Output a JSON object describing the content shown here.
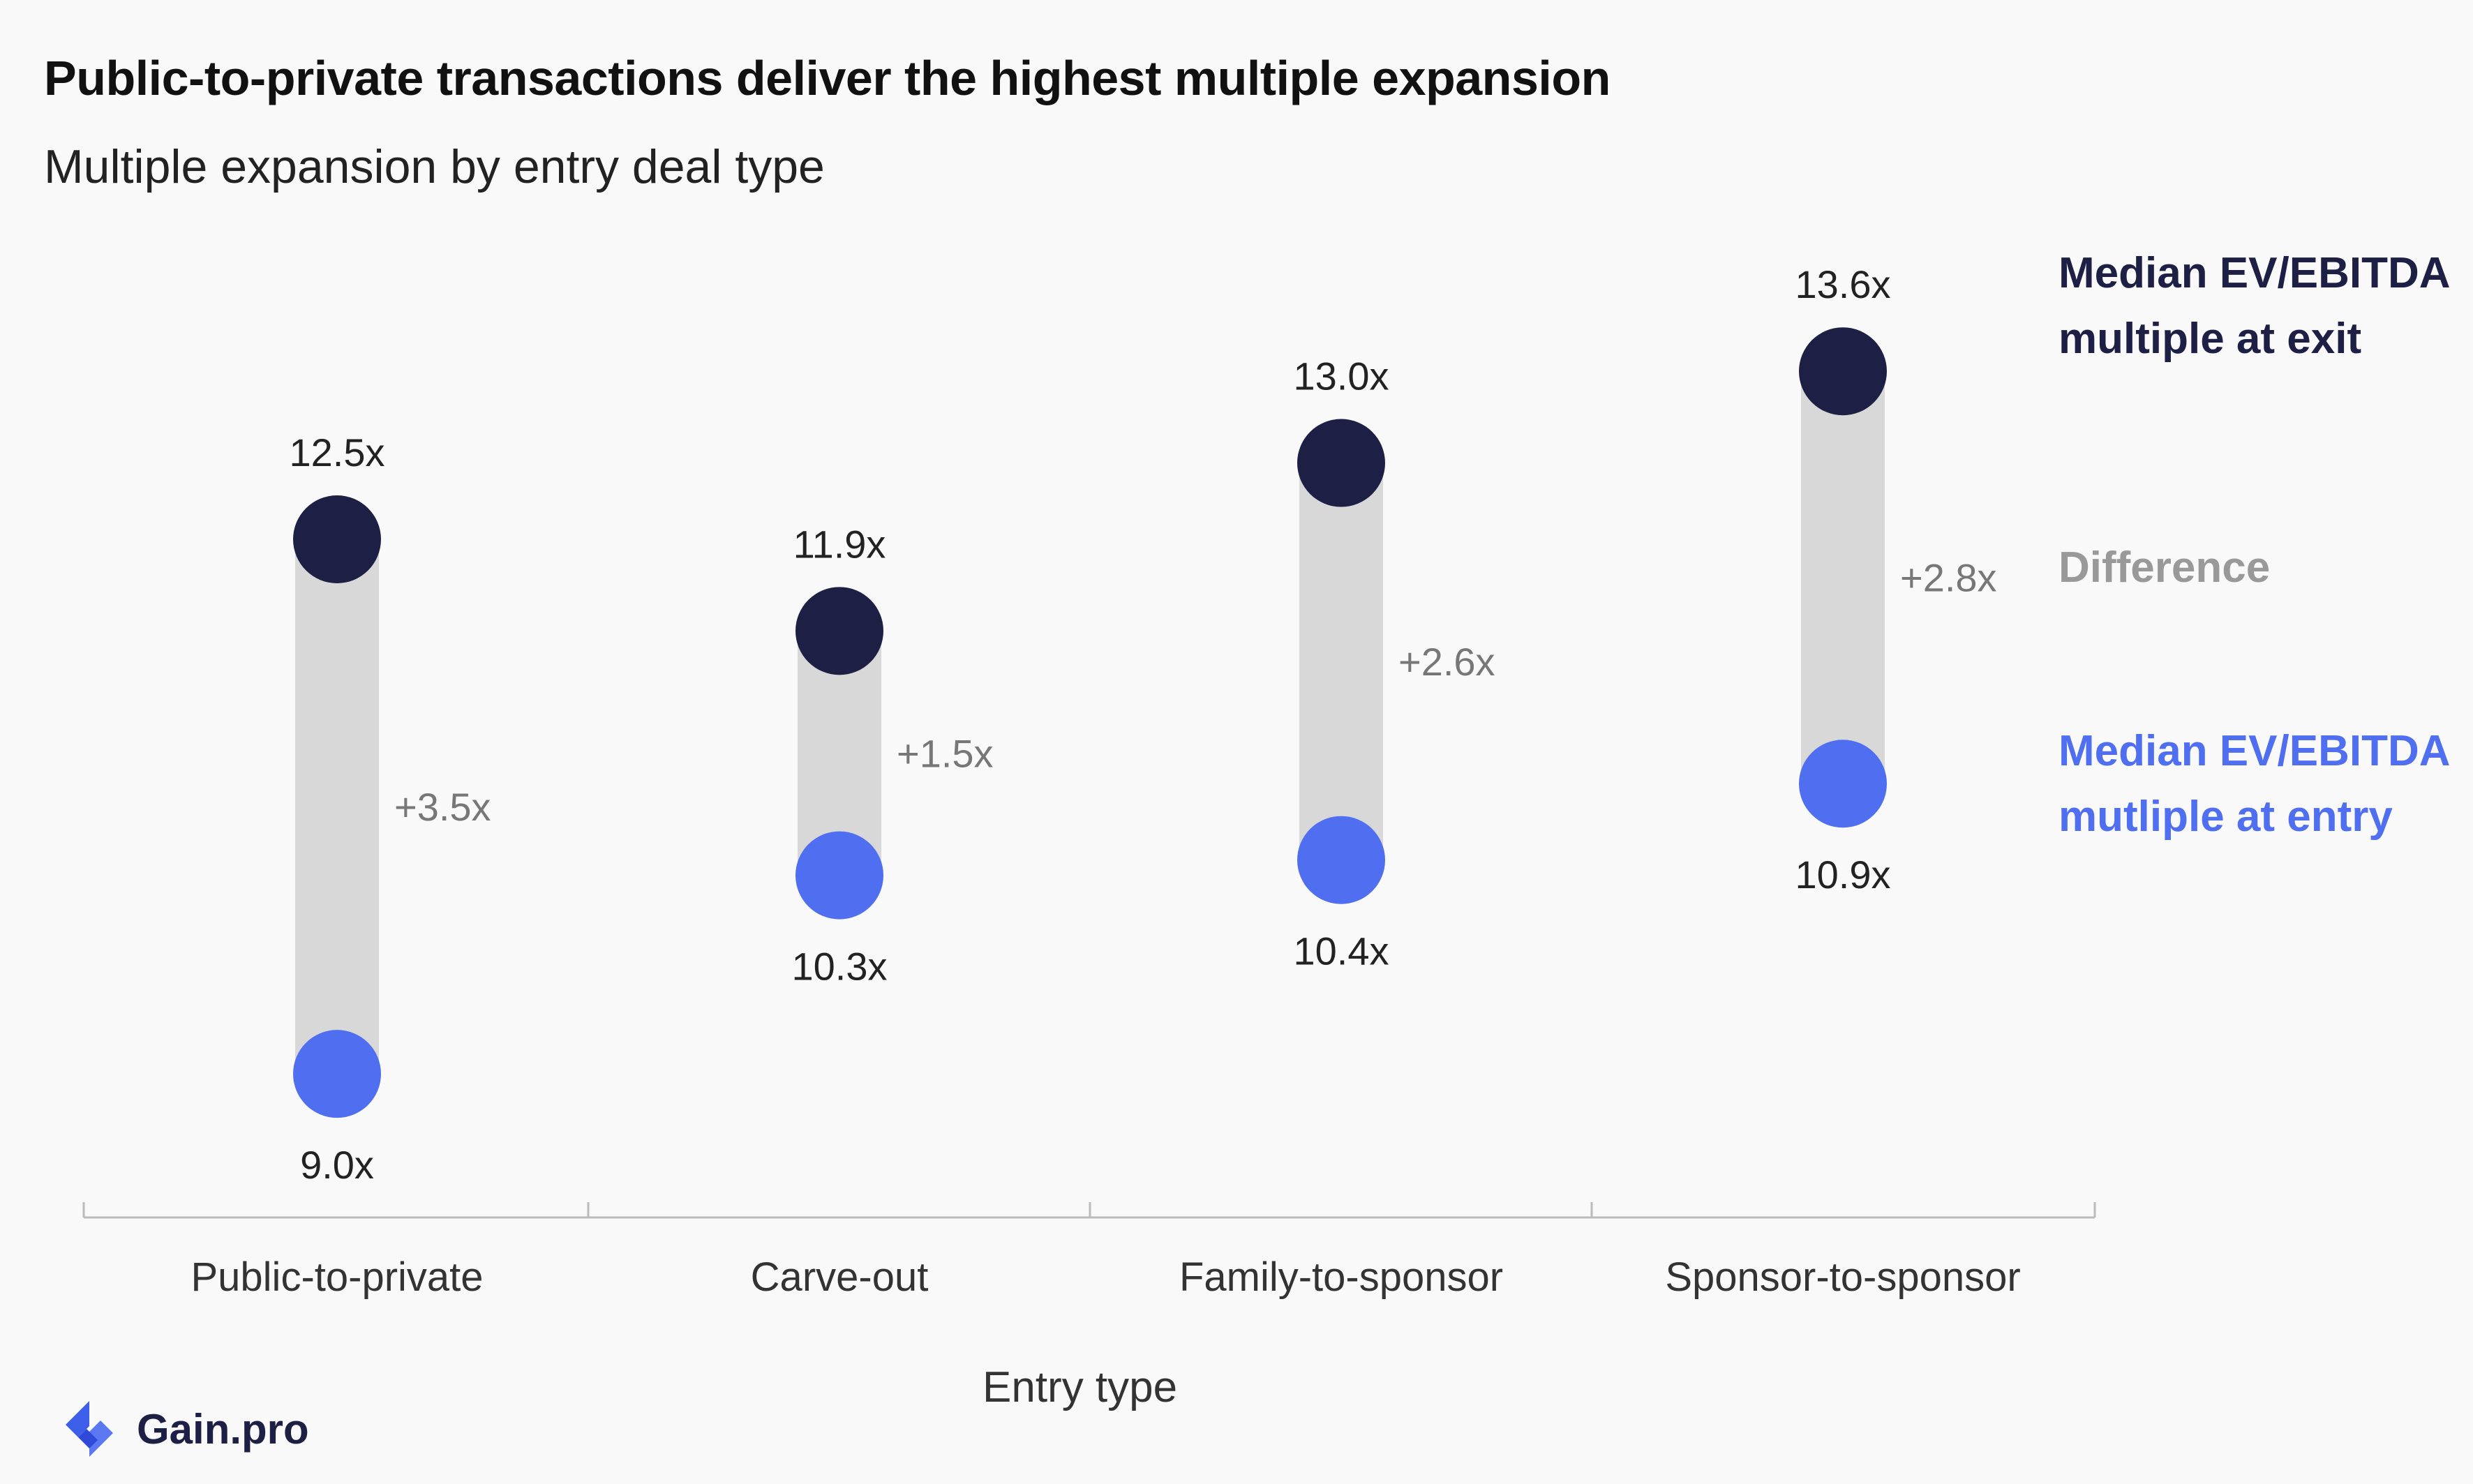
{
  "title": "Public-to-private transactions deliver the highest multiple expansion",
  "subtitle": "Multiple expansion by entry deal type",
  "brand": {
    "name": "Gain.pro",
    "logo_icon": "gain-pro-logo-icon"
  },
  "colors": {
    "exit": "#1e1f45",
    "entry": "#4f6ff0",
    "difference": "#999999",
    "bar": "#d8d8d8",
    "axis": "#bbbbbb"
  },
  "legend": {
    "exit_label": "Median EV/EBITDA multiple at exit",
    "difference_label": "Difference",
    "entry_label": "Median EV/EBITDA mutliple at entry"
  },
  "chart_data": {
    "type": "dumbbell",
    "xlabel": "Entry type",
    "categories": [
      "Public-to-private",
      "Carve-out",
      "Family-to-sponsor",
      "Sponsor-to-sponsor"
    ],
    "series": [
      {
        "name": "Median EV/EBITDA multiple at exit",
        "values": [
          12.5,
          11.9,
          13.0,
          13.6
        ]
      },
      {
        "name": "Median EV/EBITDA mutliple at entry",
        "values": [
          9.0,
          10.3,
          10.4,
          10.9
        ]
      }
    ],
    "exit_labels": [
      "12.5x",
      "11.9x",
      "13.0x",
      "13.6x"
    ],
    "entry_labels": [
      "9.0x",
      "10.3x",
      "10.4x",
      "10.9x"
    ],
    "difference_labels": [
      "+3.5x",
      "+1.5x",
      "+2.6x",
      "+2.8x"
    ],
    "ylim": [
      7.5,
      14.5
    ],
    "grid": false,
    "legend_position": "right"
  }
}
